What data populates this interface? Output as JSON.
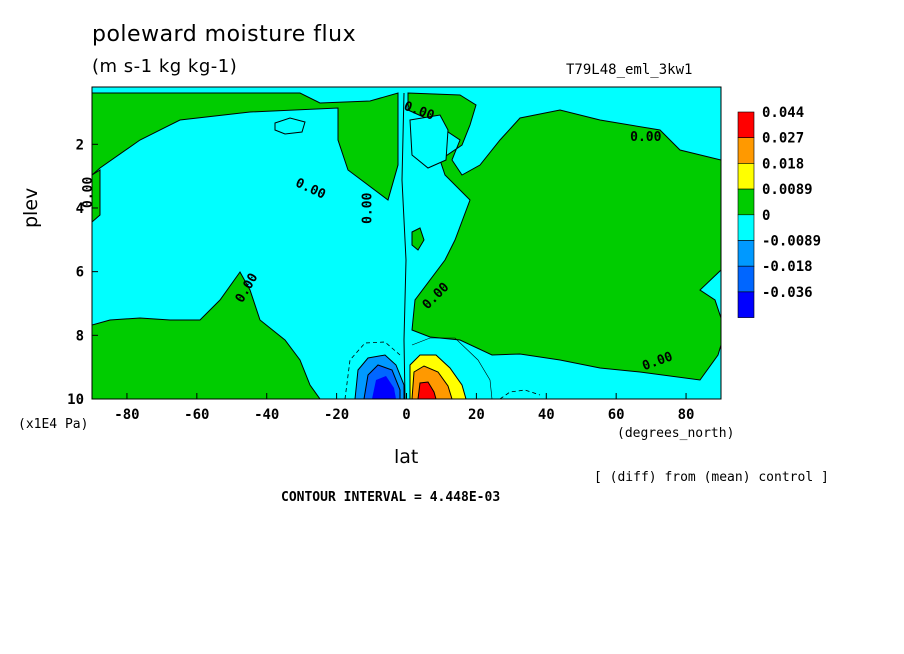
{
  "chart_data": {
    "type": "heatmap",
    "title": "poleward moisture flux",
    "units": "(m s-1 kg kg-1)",
    "run_label": "T79L48_eml_3kw1",
    "xlabel": "lat",
    "x_unit_label": "(degrees_north)",
    "ylabel": "plev",
    "y_unit_label": "(x1E4 Pa)",
    "diff_label": "[ (diff) from (mean) control ]",
    "contour_interval_label": "CONTOUR INTERVAL = 4.448E-03",
    "xlim": [
      -90,
      90
    ],
    "ylim": [
      10,
      0.2
    ],
    "x_ticks": [
      -80,
      -60,
      -40,
      -20,
      0,
      20,
      40,
      60,
      80
    ],
    "y_ticks": [
      2,
      4,
      6,
      8,
      10
    ],
    "contour_labels": [
      "0.00",
      "0.00",
      "0.00",
      "0.00",
      "0.00",
      "0.00",
      "0.00",
      "0.00"
    ],
    "colorbar": {
      "labels": [
        "0.044",
        "0.027",
        "0.018",
        "0.0089",
        "0",
        "-0.0089",
        "-0.018",
        "-0.036"
      ],
      "colors": [
        "#ff0000",
        "#ff9900",
        "#ffff00",
        "#00cc00",
        "#00ffff",
        "#0099ff",
        "#0066ff",
        "#0000ff"
      ]
    },
    "features": [
      {
        "name": "positive max",
        "lat": 7,
        "plev": 9.8,
        "value": 0.044
      },
      {
        "name": "negative min",
        "lat": -7,
        "plev": 9.6,
        "value": -0.036
      }
    ]
  }
}
